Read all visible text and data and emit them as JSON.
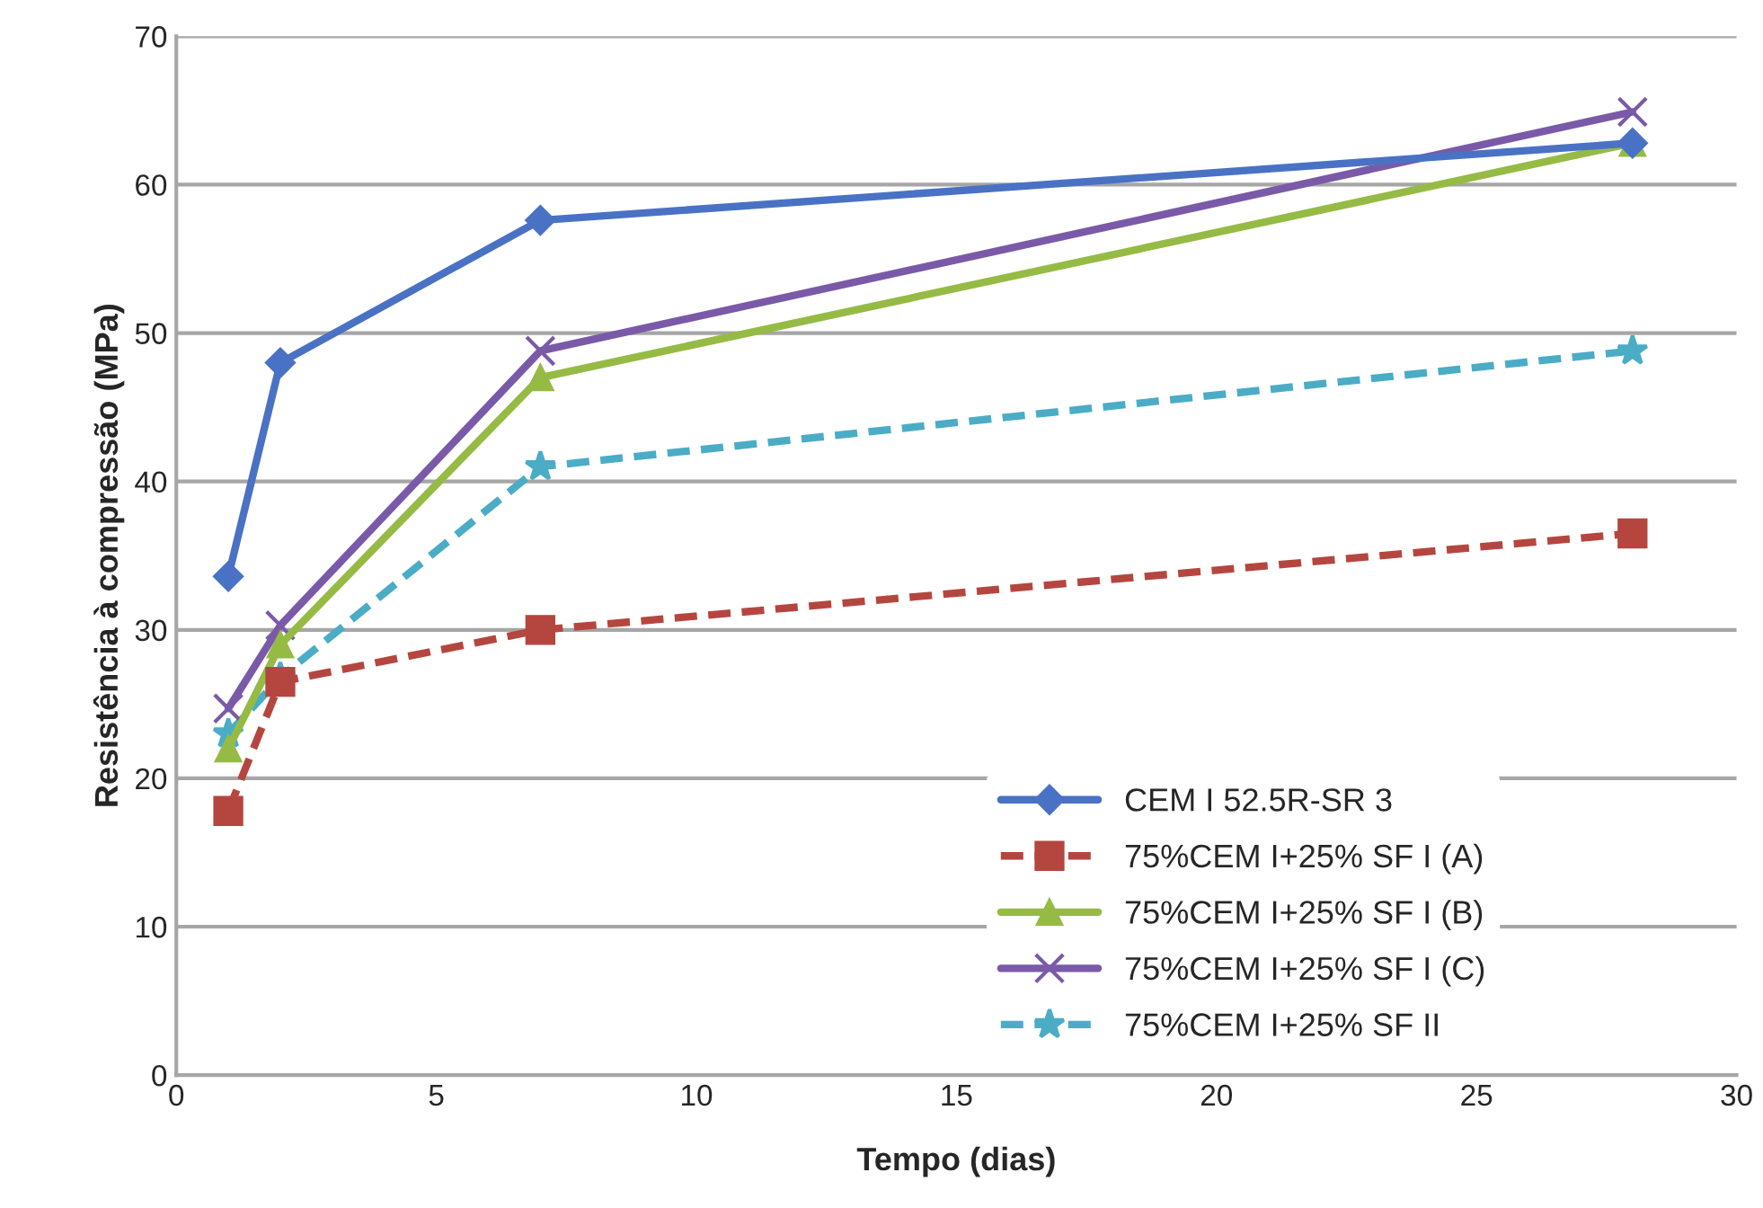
{
  "chart_data": {
    "type": "line",
    "xlabel": "Tempo (dias)",
    "ylabel": "Resistência à compressão (MPa)",
    "x": [
      1,
      2,
      7,
      28
    ],
    "series": [
      {
        "name": "CEM I 52.5R-SR 3",
        "color": "#4a72c4",
        "values": [
          33.6,
          48.0,
          57.6,
          62.8
        ],
        "marker": "diamond",
        "line_style": "solid"
      },
      {
        "name": "75%CEM I+25% SF I (A)",
        "color": "#b5463f",
        "values": [
          17.8,
          26.5,
          30.0,
          36.5
        ],
        "marker": "square",
        "line_style": "dashed"
      },
      {
        "name": "75%CEM I+25% SF I (B)",
        "color": "#95bb45",
        "values": [
          22.0,
          29.0,
          47.0,
          62.8
        ],
        "marker": "triangle",
        "line_style": "solid"
      },
      {
        "name": "75%CEM I+25% SF I (C)",
        "color": "#7a5aa8",
        "values": [
          24.7,
          30.3,
          48.8,
          64.9
        ],
        "marker": "cross",
        "line_style": "solid"
      },
      {
        "name": "75%CEM I+25% SF II",
        "color": "#4bacc6",
        "values": [
          23.0,
          26.8,
          41.0,
          48.8
        ],
        "marker": "star",
        "line_style": "dashed"
      }
    ],
    "xlim": [
      0,
      30
    ],
    "xticks": [
      0,
      5,
      10,
      15,
      20,
      25,
      30
    ],
    "ylim": [
      0,
      70
    ],
    "yticks": [
      0,
      10,
      20,
      30,
      40,
      50,
      60,
      70
    ],
    "grid": "y",
    "legend": "bottom right"
  }
}
